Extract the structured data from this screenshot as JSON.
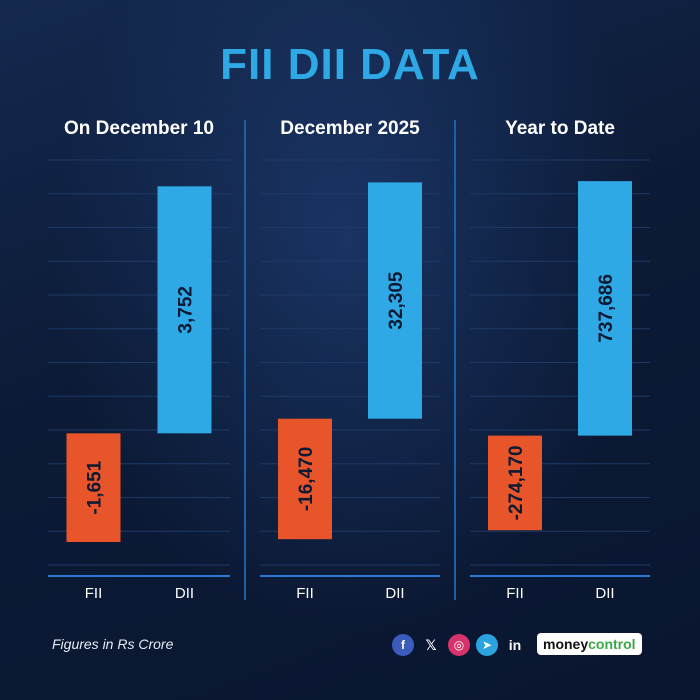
{
  "title": "FII DII DATA",
  "chart_data": [
    {
      "type": "bar",
      "title": "On December 10",
      "categories": [
        "FII",
        "DII"
      ],
      "values": [
        -1651,
        3752
      ],
      "value_labels": [
        "-1,651",
        "3,752"
      ],
      "ylim": [
        -2000,
        4000
      ]
    },
    {
      "type": "bar",
      "title": "December 2025",
      "categories": [
        "FII",
        "DII"
      ],
      "values": [
        -16470,
        32305
      ],
      "value_labels": [
        "-16,470",
        "32,305"
      ],
      "ylim": [
        -20000,
        34000
      ]
    },
    {
      "type": "bar",
      "title": "Year to Date",
      "categories": [
        "FII",
        "DII"
      ],
      "values": [
        -274170,
        737686
      ],
      "value_labels": [
        "-274,170",
        "737,686"
      ],
      "ylim": [
        -375000,
        770000
      ]
    }
  ],
  "colors": {
    "fii": "#e8552a",
    "dii": "#2ea9e6",
    "title": "#2ea9e6",
    "grid": "#1d3a66",
    "baseline": "#2a7ad4"
  },
  "footer": {
    "note": "Figures in Rs Crore",
    "social_icons": [
      "facebook-icon",
      "x-icon",
      "instagram-icon",
      "telegram-icon",
      "linkedin-icon"
    ],
    "brand_part1": "money",
    "brand_part2": "control"
  }
}
